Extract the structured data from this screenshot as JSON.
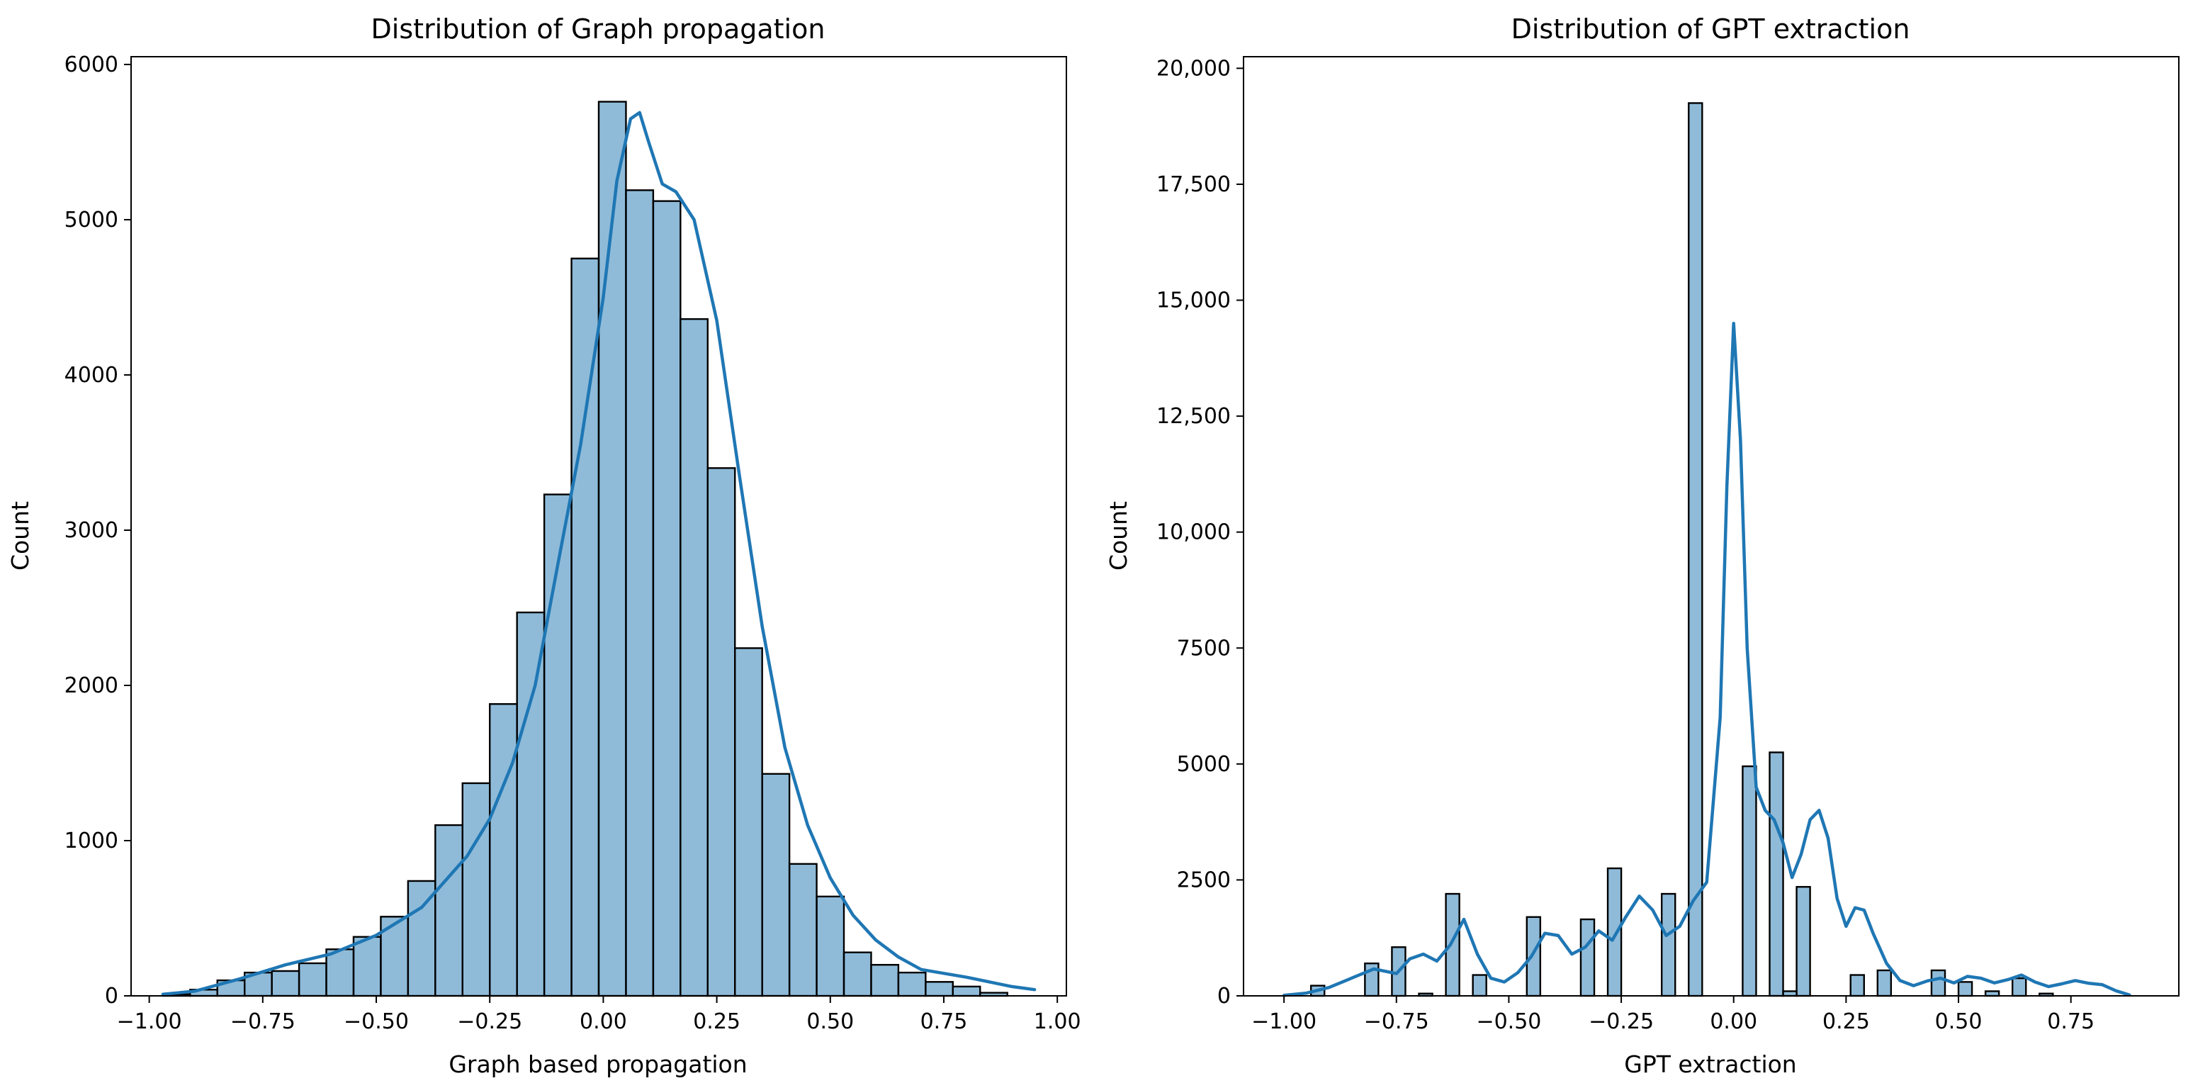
{
  "chart_data": [
    {
      "type": "bar",
      "subtype": "histogram",
      "title": "Distribution of Graph propagation",
      "xlabel": "Graph based propagation",
      "ylabel": "Count",
      "xlim": [
        -1.04,
        1.02
      ],
      "ylim": [
        0,
        6050
      ],
      "xticks": [
        -1.0,
        -0.75,
        -0.5,
        -0.25,
        0.0,
        0.25,
        0.5,
        0.75,
        1.0
      ],
      "xtick_labels": [
        "−1.00",
        "−0.75",
        "−0.50",
        "−0.25",
        "0.00",
        "0.25",
        "0.50",
        "0.75",
        "1.00"
      ],
      "yticks": [
        0,
        1000,
        2000,
        3000,
        4000,
        5000,
        6000
      ],
      "ytick_labels": [
        "0",
        "1000",
        "2000",
        "3000",
        "4000",
        "5000",
        "6000"
      ],
      "bin_edges": [
        -0.97,
        -0.91,
        -0.85,
        -0.79,
        -0.73,
        -0.67,
        -0.61,
        -0.55,
        -0.49,
        -0.43,
        -0.37,
        -0.31,
        -0.25,
        -0.19,
        -0.13,
        -0.07,
        -0.01,
        0.05,
        0.11,
        0.17,
        0.23,
        0.29,
        0.35,
        0.41,
        0.47,
        0.53,
        0.59,
        0.65,
        0.71,
        0.77,
        0.83,
        0.89,
        0.95
      ],
      "counts": [
        10,
        40,
        100,
        150,
        160,
        210,
        300,
        380,
        510,
        740,
        1100,
        1370,
        1880,
        2470,
        3230,
        4750,
        5760,
        5190,
        5120,
        4360,
        3400,
        2240,
        1430,
        850,
        640,
        280,
        200,
        150,
        90,
        60,
        20,
        0
      ],
      "kde": {
        "x": [
          -0.97,
          -0.9,
          -0.8,
          -0.7,
          -0.6,
          -0.5,
          -0.4,
          -0.3,
          -0.25,
          -0.2,
          -0.15,
          -0.1,
          -0.05,
          0.0,
          0.03,
          0.06,
          0.08,
          0.1,
          0.13,
          0.16,
          0.2,
          0.25,
          0.3,
          0.35,
          0.4,
          0.45,
          0.5,
          0.55,
          0.6,
          0.65,
          0.7,
          0.8,
          0.9,
          0.95
        ],
        "y": [
          10,
          30,
          110,
          200,
          270,
          390,
          570,
          900,
          1140,
          1500,
          2000,
          2780,
          3550,
          4500,
          5250,
          5650,
          5690,
          5500,
          5230,
          5180,
          5000,
          4350,
          3350,
          2380,
          1600,
          1100,
          760,
          520,
          360,
          250,
          170,
          120,
          60,
          40
        ]
      }
    },
    {
      "type": "bar",
      "subtype": "histogram",
      "title": "Distribution of GPT extraction",
      "xlabel": "GPT extraction",
      "ylabel": "Count",
      "xlim": [
        -1.09,
        0.99
      ],
      "ylim": [
        0,
        20250
      ],
      "xticks": [
        -1.0,
        -0.75,
        -0.5,
        -0.25,
        0.0,
        0.25,
        0.5,
        0.75
      ],
      "xtick_labels": [
        "−1.00",
        "−0.75",
        "−0.50",
        "−0.25",
        "0.00",
        "0.25",
        "0.50",
        "0.75"
      ],
      "yticks": [
        0,
        2500,
        5000,
        7500,
        10000,
        12500,
        15000,
        17500,
        20000
      ],
      "ytick_labels": [
        "0",
        "2500",
        "5000",
        "7500",
        "10,000",
        "12,500",
        "15,000",
        "17,500",
        "20,000"
      ],
      "bin_edges": [
        -1.0,
        -0.97,
        -0.94,
        -0.91,
        -0.88,
        -0.85,
        -0.82,
        -0.79,
        -0.76,
        -0.73,
        -0.7,
        -0.67,
        -0.64,
        -0.61,
        -0.58,
        -0.55,
        -0.52,
        -0.49,
        -0.46,
        -0.43,
        -0.4,
        -0.37,
        -0.34,
        -0.31,
        -0.28,
        -0.25,
        -0.22,
        -0.19,
        -0.16,
        -0.13,
        -0.1,
        -0.07,
        -0.04,
        -0.01,
        0.02,
        0.05,
        0.08,
        0.11,
        0.14,
        0.17,
        0.2,
        0.23,
        0.26,
        0.29,
        0.32,
        0.35,
        0.38,
        0.41,
        0.44,
        0.47,
        0.5,
        0.53,
        0.56,
        0.59,
        0.62,
        0.65,
        0.68,
        0.71,
        0.74,
        0.77,
        0.8,
        0.83,
        0.86,
        0.89
      ],
      "counts": [
        0,
        0,
        220,
        0,
        0,
        0,
        700,
        0,
        1050,
        0,
        50,
        0,
        2200,
        0,
        450,
        0,
        0,
        0,
        1700,
        0,
        0,
        0,
        1650,
        0,
        2750,
        0,
        0,
        0,
        2200,
        0,
        19250,
        0,
        0,
        0,
        4950,
        0,
        5250,
        100,
        2350,
        0,
        0,
        0,
        450,
        0,
        550,
        0,
        0,
        0,
        550,
        0,
        300,
        0,
        100,
        0,
        380,
        0,
        50,
        0,
        0,
        0,
        0,
        0,
        0
      ],
      "kde": {
        "x": [
          -1.0,
          -0.95,
          -0.9,
          -0.85,
          -0.8,
          -0.75,
          -0.72,
          -0.69,
          -0.66,
          -0.63,
          -0.6,
          -0.57,
          -0.54,
          -0.51,
          -0.48,
          -0.45,
          -0.42,
          -0.39,
          -0.36,
          -0.33,
          -0.3,
          -0.27,
          -0.24,
          -0.21,
          -0.18,
          -0.15,
          -0.12,
          -0.09,
          -0.06,
          -0.03,
          -0.015,
          0.0,
          0.015,
          0.03,
          0.05,
          0.07,
          0.09,
          0.11,
          0.13,
          0.15,
          0.17,
          0.19,
          0.21,
          0.23,
          0.25,
          0.27,
          0.29,
          0.31,
          0.34,
          0.37,
          0.4,
          0.43,
          0.46,
          0.49,
          0.52,
          0.55,
          0.58,
          0.61,
          0.64,
          0.67,
          0.7,
          0.73,
          0.76,
          0.79,
          0.82,
          0.85,
          0.88
        ],
        "y": [
          10,
          60,
          180,
          380,
          580,
          480,
          800,
          900,
          750,
          1100,
          1650,
          900,
          380,
          300,
          500,
          850,
          1350,
          1300,
          900,
          1050,
          1400,
          1200,
          1700,
          2150,
          1850,
          1300,
          1500,
          2050,
          2450,
          6000,
          11000,
          14500,
          12000,
          7500,
          4500,
          4000,
          3800,
          3300,
          2550,
          3050,
          3800,
          4000,
          3400,
          2100,
          1500,
          1900,
          1850,
          1350,
          700,
          330,
          220,
          320,
          380,
          280,
          420,
          380,
          280,
          350,
          450,
          300,
          200,
          260,
          330,
          270,
          240,
          110,
          20
        ]
      }
    }
  ]
}
